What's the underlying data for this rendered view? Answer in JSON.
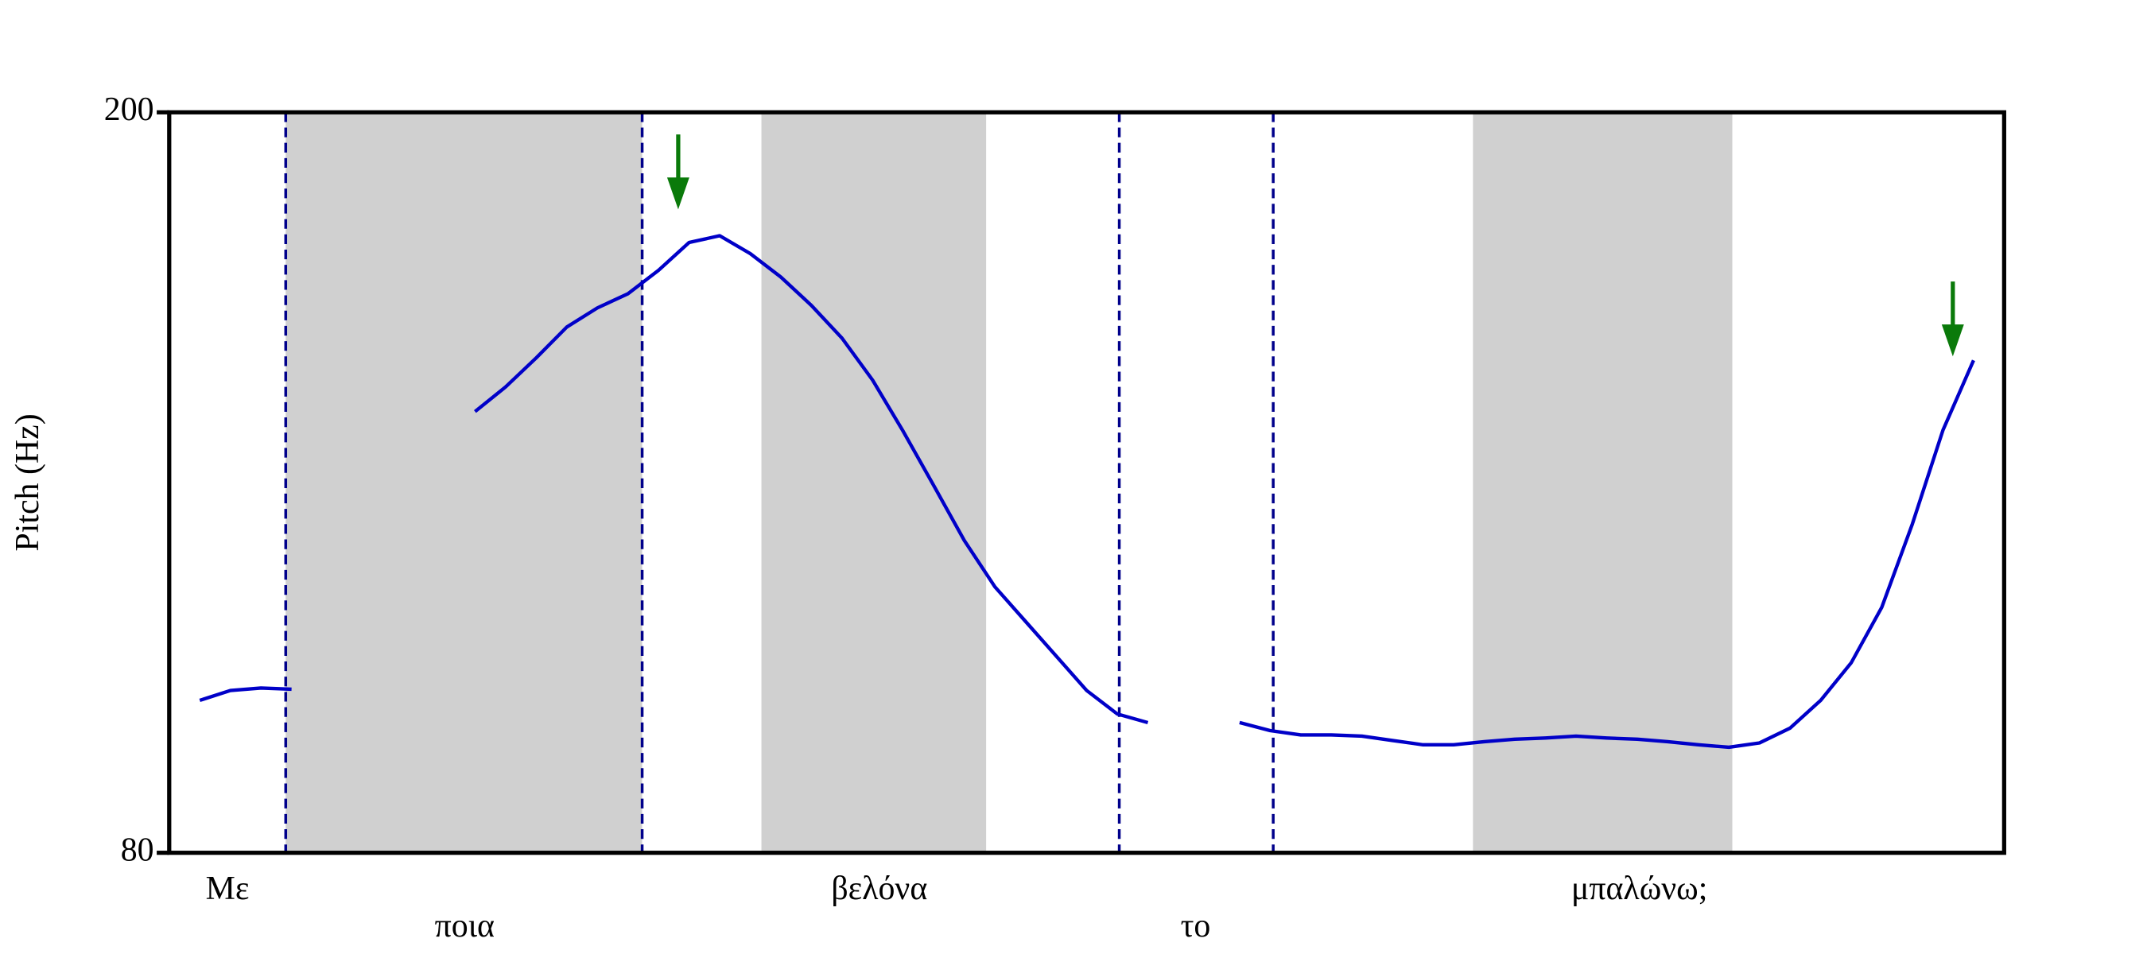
{
  "chart_data": {
    "type": "line",
    "y_label": "Pitch (Hz)",
    "ylim": [
      80,
      200
    ],
    "yticks": [
      80,
      200
    ],
    "annotations": [
      "Με",
      "ποια",
      "βελόνα",
      "το",
      "μπαλώνω;"
    ],
    "series": [
      {
        "color": "#0000c8",
        "values": [
          null,
          104.7,
          106.3,
          106.7,
          106.5,
          null,
          null,
          null,
          null,
          null,
          151.5,
          155.5,
          160.2,
          165.2,
          168.3,
          170.6,
          174.4,
          178.9,
          180.0,
          177.1,
          173.3,
          168.7,
          163.4,
          156.6,
          148.3,
          139.5,
          130.6,
          123.1,
          117.5,
          111.9,
          106.3,
          102.5,
          101.1,
          null,
          null,
          101.1,
          99.8,
          99.1,
          99.1,
          98.9,
          98.2,
          97.5,
          97.5,
          98.0,
          98.4,
          98.6,
          98.9,
          98.6,
          98.4,
          98.0,
          97.5,
          97.1,
          97.8,
          100.2,
          104.7,
          110.8,
          119.8,
          133.3,
          148.5,
          159.8,
          null
        ]
      }
    ]
  }
}
